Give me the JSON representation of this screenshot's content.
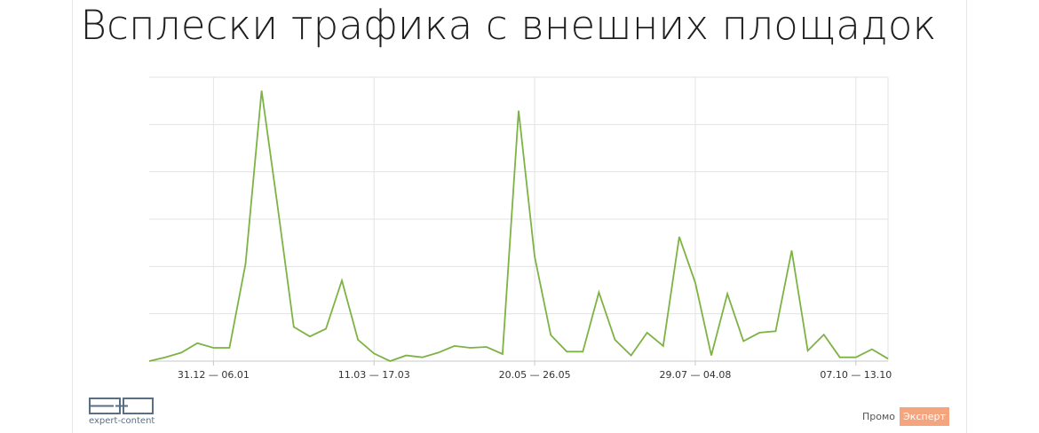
{
  "title": "Всплески трафика с внешних площадок",
  "chart_data": {
    "type": "line",
    "title": "Всплески трафика с внешних площадок",
    "xlabel": "",
    "ylabel": "",
    "grid": true,
    "legend": "none",
    "x_tick_labels": [
      "31.12 — 06.01",
      "11.03 — 17.03",
      "20.05 — 26.05",
      "29.07 — 04.08",
      "07.10 — 13.10"
    ],
    "x_tick_positions": [
      4,
      14,
      24,
      34,
      44
    ],
    "ylim": [
      0,
      5.7
    ],
    "series": [
      {
        "color": "#7cb342",
        "values": [
          0.0,
          0.08,
          0.18,
          0.38,
          0.28,
          0.28,
          2.05,
          5.7,
          3.25,
          0.72,
          0.52,
          0.68,
          1.7,
          0.45,
          0.16,
          0.0,
          0.12,
          0.08,
          0.18,
          0.32,
          0.28,
          0.3,
          0.15,
          5.28,
          2.2,
          0.55,
          0.2,
          0.2,
          1.45,
          0.45,
          0.12,
          0.6,
          0.32,
          2.62,
          1.65,
          0.12,
          1.42,
          0.42,
          0.6,
          0.63,
          2.33,
          0.22,
          0.56,
          0.08,
          0.08,
          0.25,
          0.05
        ]
      }
    ]
  },
  "footer": {
    "logo_caption": "expert-content",
    "promo_text": "Промо",
    "promo_badge": "Эксперт"
  },
  "colors": {
    "line": "#7cb342",
    "grid": "#e3e3e3",
    "badge": "#f4a57d"
  }
}
